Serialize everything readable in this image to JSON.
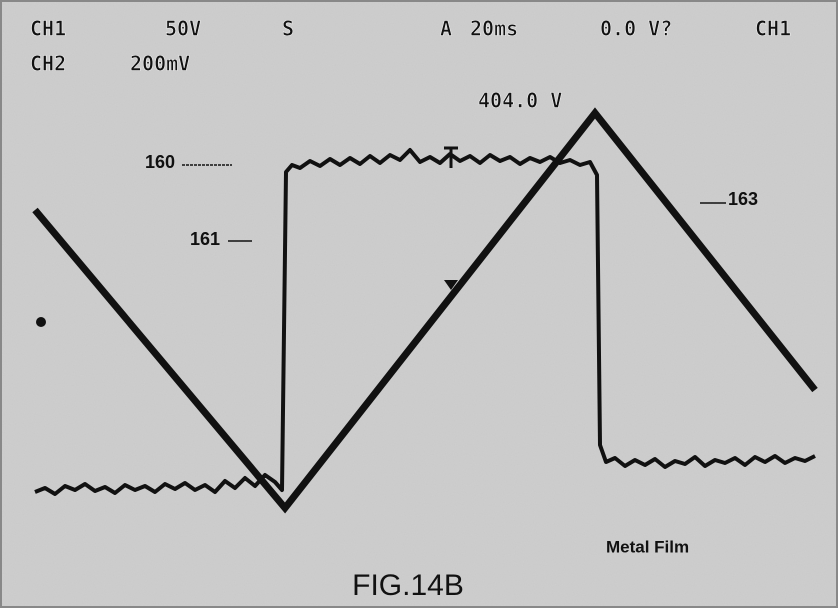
{
  "header": {
    "row1": [
      "CH1",
      "50V",
      "S",
      "A",
      "20ms",
      "0.0 V?",
      "CH1"
    ],
    "row2": [
      "CH2",
      "200mV"
    ]
  },
  "readout": "404.0 V",
  "callouts": [
    "160",
    "161",
    "163"
  ],
  "annotation": "Metal Film",
  "caption": "FIG.14B"
}
